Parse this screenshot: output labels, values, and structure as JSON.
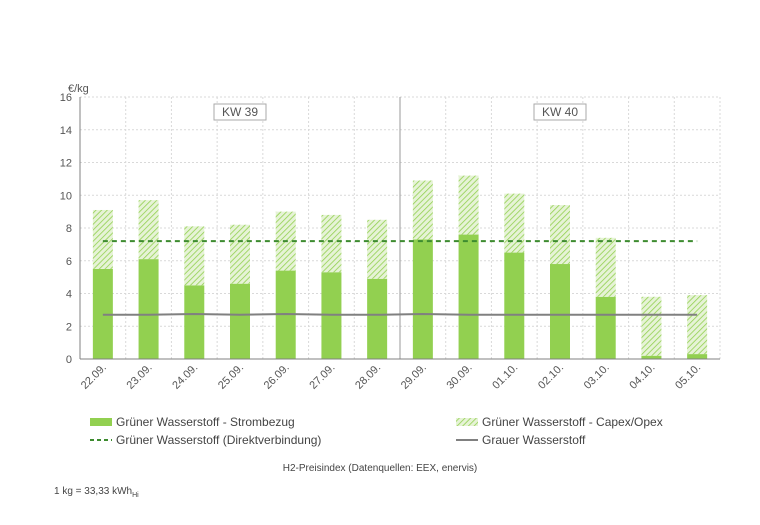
{
  "chart_data": {
    "type": "bar",
    "ylabel": "€/kg",
    "ylim": [
      0,
      16
    ],
    "yticks": [
      0,
      2,
      4,
      6,
      8,
      10,
      12,
      14,
      16
    ],
    "categories": [
      "22.09.",
      "23.09.",
      "24.09.",
      "25.09.",
      "26.09.",
      "27.09.",
      "28.09.",
      "29.09.",
      "30.09.",
      "01.10.",
      "02.10.",
      "03.10.",
      "04.10.",
      "05.10."
    ],
    "series": [
      {
        "name": "Grüner Wasserstoff - Strombezug",
        "kind": "stacked-bar",
        "color": "#92d050",
        "values": [
          5.5,
          6.1,
          4.5,
          4.6,
          5.4,
          5.3,
          4.9,
          7.3,
          7.6,
          6.5,
          5.8,
          3.8,
          0.2,
          0.3
        ]
      },
      {
        "name": "Grüner Wasserstoff - Capex/Opex",
        "kind": "stacked-bar-hatched",
        "color": "#92d050",
        "values": [
          3.6,
          3.6,
          3.6,
          3.6,
          3.6,
          3.5,
          3.6,
          3.6,
          3.6,
          3.6,
          3.6,
          3.6,
          3.6,
          3.6
        ]
      },
      {
        "name": "Grüner Wasserstoff (Direktverbindung)",
        "kind": "dashed-line",
        "color": "#3d8b2f",
        "values": [
          7.2,
          7.2,
          7.2,
          7.2,
          7.2,
          7.2,
          7.2,
          7.2,
          7.2,
          7.2,
          7.2,
          7.2,
          7.2,
          7.2
        ]
      },
      {
        "name": "Grauer Wasserstoff",
        "kind": "line",
        "color": "#808080",
        "values": [
          2.7,
          2.7,
          2.75,
          2.7,
          2.75,
          2.7,
          2.7,
          2.75,
          2.7,
          2.7,
          2.7,
          2.7,
          2.7,
          2.7
        ]
      }
    ],
    "week_labels": [
      {
        "label": "KW 39",
        "start_index": 0,
        "end_index": 6
      },
      {
        "label": "KW 40",
        "start_index": 7,
        "end_index": 13
      }
    ],
    "source": "H2-Preisindex (Datenquellen: EEX, enervis)",
    "footnote": {
      "text": "1 kg = 33,33 kWh",
      "subscript": "Hi"
    },
    "grid": true,
    "legend_position": "bottom"
  }
}
